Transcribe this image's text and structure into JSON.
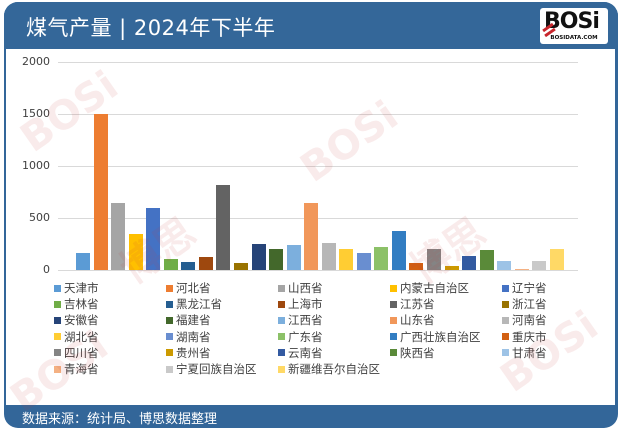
{
  "header": {
    "title": "煤气产量 | 2024年下半年",
    "logo_text": "BOSi",
    "logo_domain": "BOSIDATA.COM"
  },
  "footer": {
    "source": "数据来源：统计局、博思数据整理"
  },
  "colors": {
    "header_bg": "#346799",
    "panel_bg": "#ffffff"
  },
  "chart_data": {
    "type": "bar",
    "title": "煤气产量 | 2024年下半年",
    "xlabel": "",
    "ylabel": "",
    "ylim": [
      0,
      2000
    ],
    "yticks": [
      0,
      500,
      1000,
      1500,
      2000
    ],
    "grid": true,
    "legend_position": "bottom",
    "categories": [
      "天津市",
      "河北省",
      "山西省",
      "内蒙古自治区",
      "辽宁省",
      "吉林省",
      "黑龙江省",
      "上海市",
      "江苏省",
      "浙江省",
      "安徽省",
      "福建省",
      "江西省",
      "山东省",
      "河南省",
      "湖北省",
      "湖南省",
      "广东省",
      "广西壮族自治区",
      "重庆市",
      "四川省",
      "贵州省",
      "云南省",
      "陕西省",
      "甘肃省",
      "青海省",
      "宁夏回族自治区",
      "新疆维吾尔自治区"
    ],
    "values": [
      165,
      1500,
      640,
      350,
      600,
      105,
      75,
      125,
      815,
      70,
      250,
      205,
      240,
      640,
      260,
      205,
      165,
      225,
      375,
      70,
      205,
      40,
      135,
      195,
      90,
      10,
      90,
      205
    ],
    "series_colors": [
      "#5b9bd5",
      "#ed7d31",
      "#a5a5a5",
      "#ffc000",
      "#4472c4",
      "#70ad47",
      "#255e91",
      "#9e480e",
      "#636363",
      "#997300",
      "#264478",
      "#43682b",
      "#7cafdd",
      "#f1975a",
      "#b7b7b7",
      "#ffcd33",
      "#698ed0",
      "#8cc168",
      "#327dc2",
      "#d26012",
      "#848484",
      "#cc9a00",
      "#335aa1",
      "#5a8a39",
      "#9dc3e6",
      "#f4b183",
      "#c9c9c9",
      "#ffd966"
    ]
  },
  "legend": {
    "rows": [
      [
        "天津市",
        "河北省",
        "山西省",
        "内蒙古自治区",
        "辽宁省"
      ],
      [
        "吉林省",
        "黑龙江省",
        "上海市",
        "江苏省",
        "浙江省"
      ],
      [
        "安徽省",
        "福建省",
        "江西省",
        "山东省",
        "河南省"
      ],
      [
        "湖北省",
        "湖南省",
        "广东省",
        "广西壮族自治区",
        "重庆市"
      ],
      [
        "四川省",
        "贵州省",
        "云南省",
        "陕西省",
        "甘肃省"
      ],
      [
        "青海省",
        "宁夏回族自治区",
        "新疆维吾尔自治区"
      ]
    ]
  }
}
